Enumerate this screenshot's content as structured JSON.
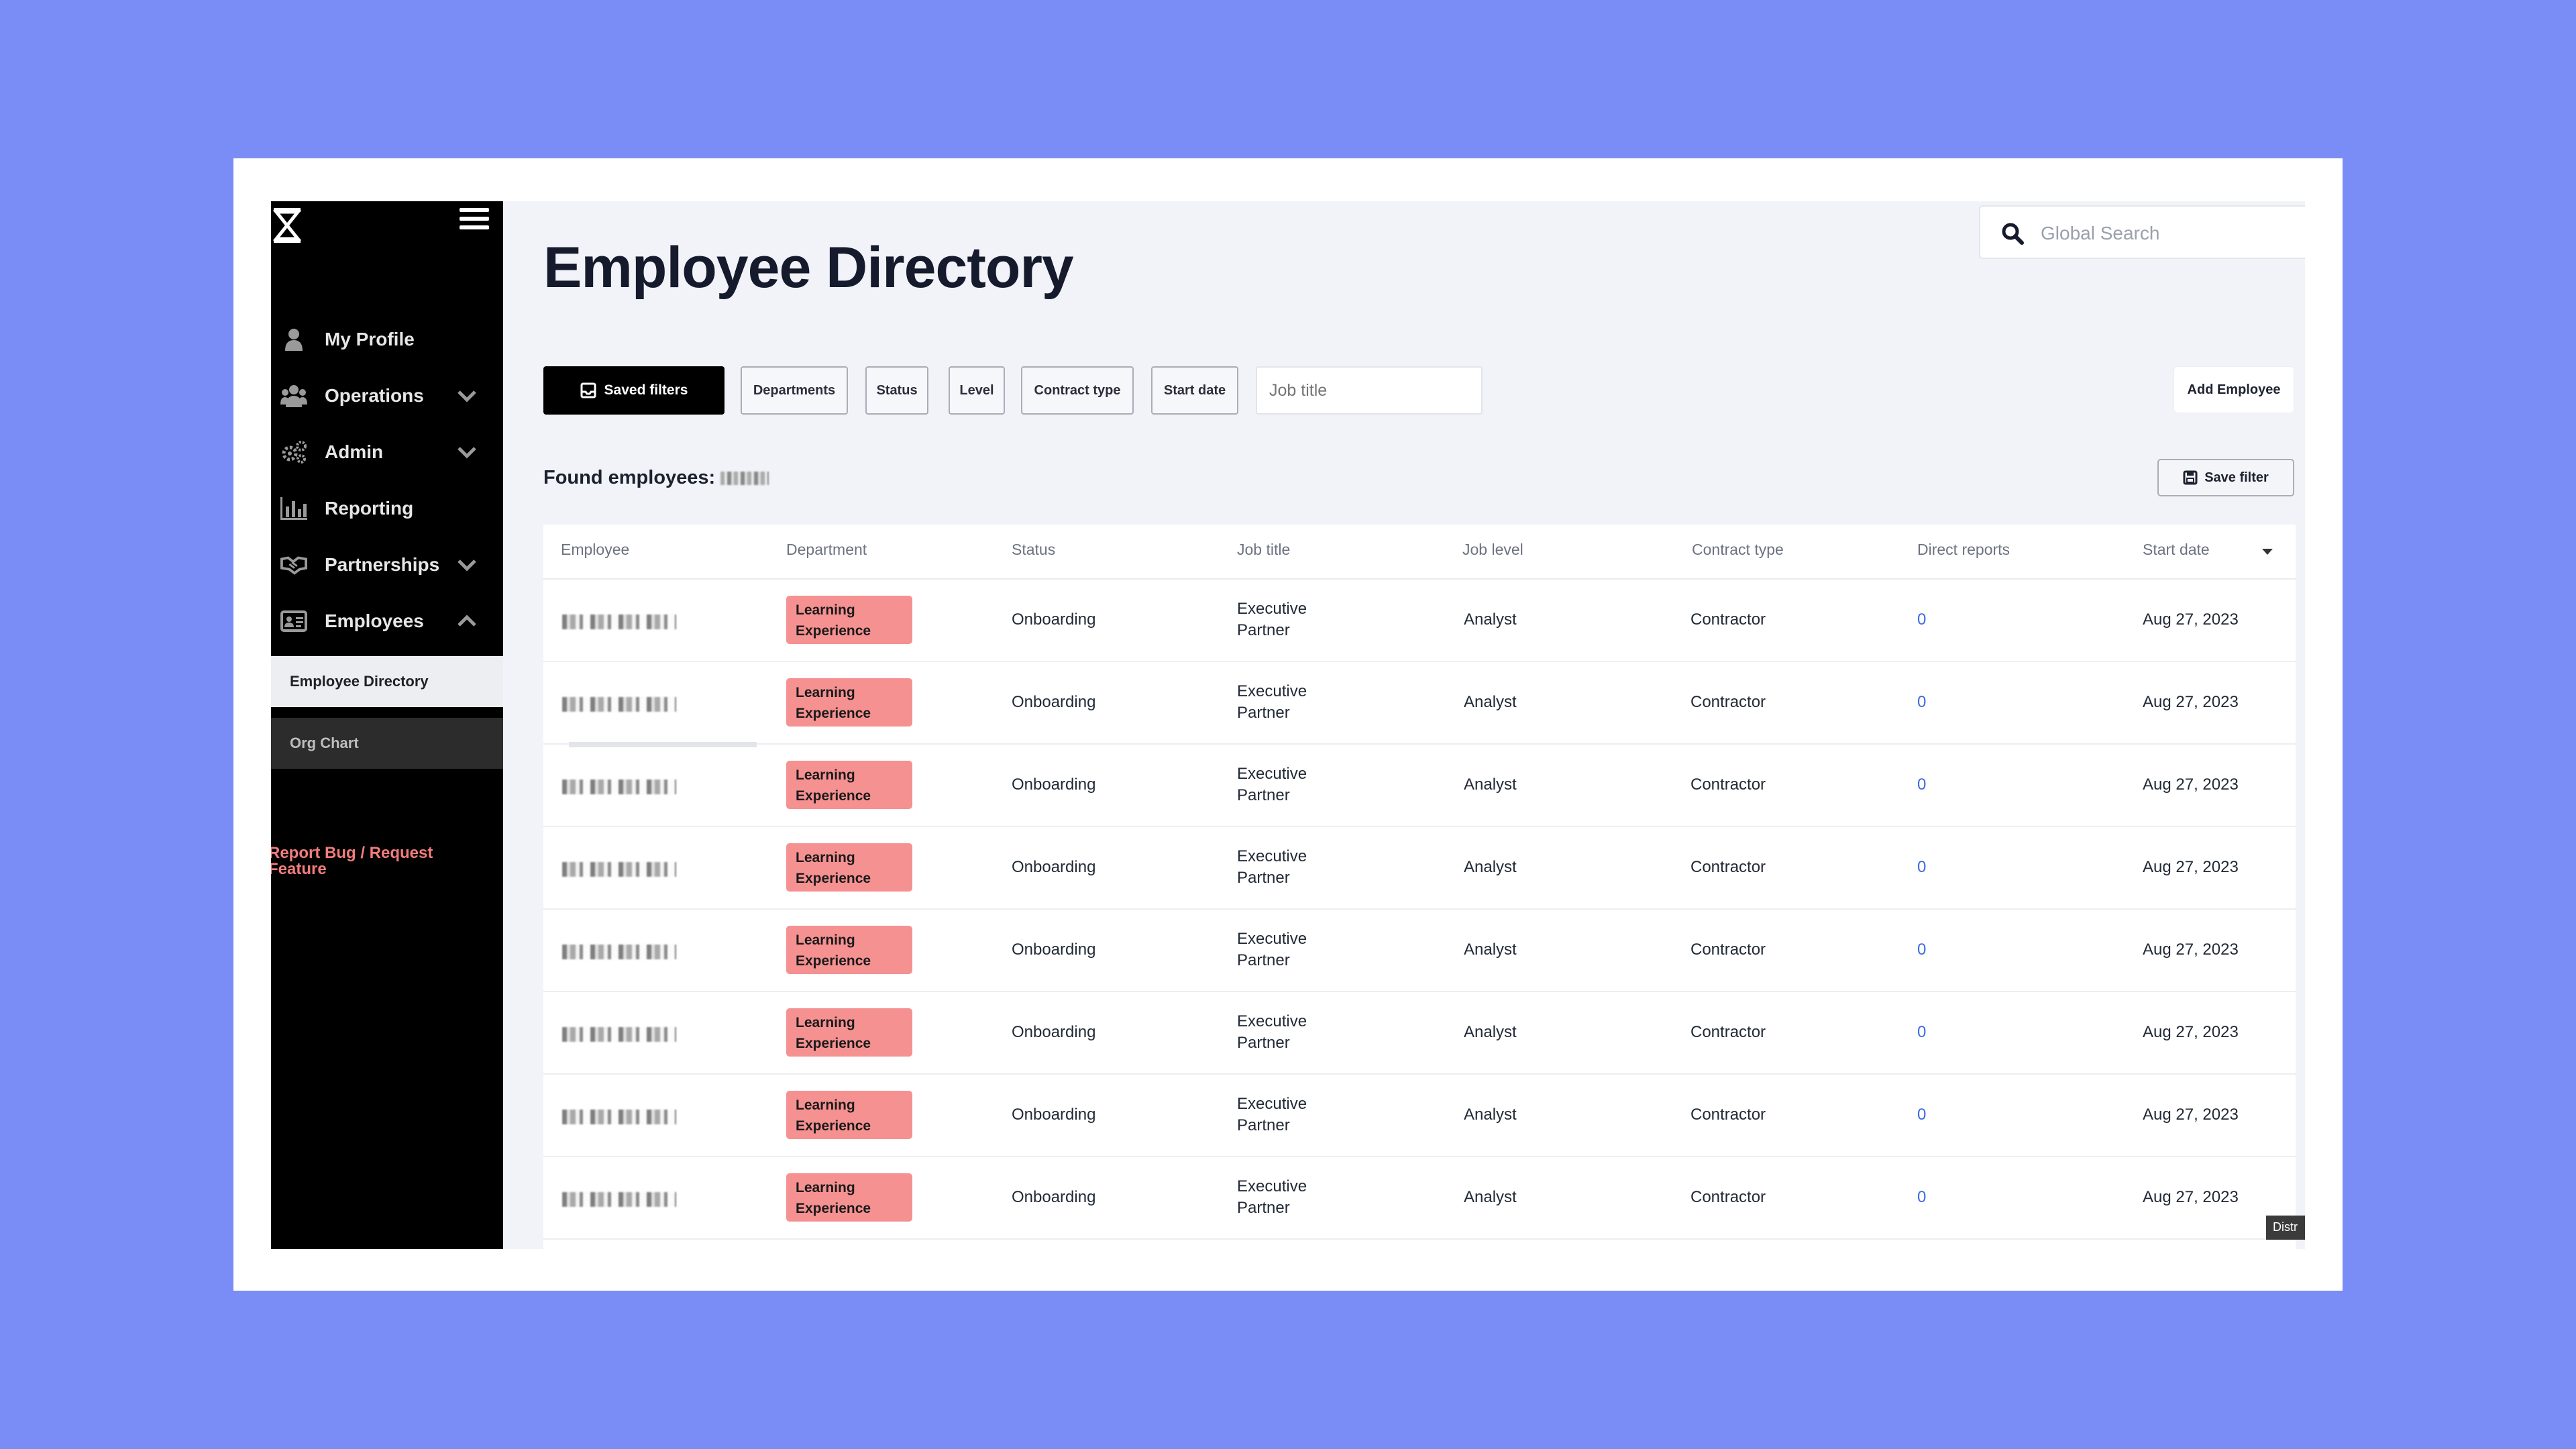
{
  "colors": {
    "background": "#7a8cf6",
    "sidebar": "#000000",
    "department_badge": "#f69191",
    "link": "#3d6ae0",
    "report_bug": "#f27c7c"
  },
  "sidebar": {
    "logo_icon": "hourglass-icon",
    "menu_icon": "hamburger-icon",
    "items": [
      {
        "label": "My Profile",
        "icon": "user-icon",
        "chevron": ""
      },
      {
        "label": "Operations",
        "icon": "users-icon",
        "chevron": "chevron-down-icon"
      },
      {
        "label": "Admin",
        "icon": "gears-icon",
        "chevron": "chevron-down-icon"
      },
      {
        "label": "Reporting",
        "icon": "bar-chart-icon",
        "chevron": ""
      },
      {
        "label": "Partnerships",
        "icon": "handshake-icon",
        "chevron": "chevron-down-icon"
      },
      {
        "label": "Employees",
        "icon": "id-card-icon",
        "chevron": "chevron-up-icon"
      }
    ],
    "sub_items": [
      "Employee Directory",
      "Org Chart"
    ],
    "report_bug": "Report Bug / Request Feature"
  },
  "header": {
    "title": "Employee Directory",
    "search_placeholder": "Global Search"
  },
  "filters": {
    "saved_filters": "Saved filters",
    "chips": [
      "Departments",
      "Status",
      "Level",
      "Contract type",
      "Start date"
    ],
    "job_title_placeholder": "Job title",
    "add_employee": "Add Employee",
    "found_label": "Found employees:",
    "save_filter": "Save filter"
  },
  "table": {
    "columns": [
      "Employee",
      "Department",
      "Status",
      "Job title",
      "Job level",
      "Contract type",
      "Direct reports",
      "Start date"
    ],
    "rows": [
      {
        "department": "Learning Experience",
        "status": "Onboarding",
        "job_title_1": "Executive",
        "job_title_2": "Partner",
        "job_level": "Analyst",
        "contract": "Contractor",
        "direct_reports": "0",
        "start_date": "Aug 27, 2023"
      },
      {
        "department": "Learning Experience",
        "status": "Onboarding",
        "job_title_1": "Executive",
        "job_title_2": "Partner",
        "job_level": "Analyst",
        "contract": "Contractor",
        "direct_reports": "0",
        "start_date": "Aug 27, 2023"
      },
      {
        "department": "Learning Experience",
        "status": "Onboarding",
        "job_title_1": "Executive",
        "job_title_2": "Partner",
        "job_level": "Analyst",
        "contract": "Contractor",
        "direct_reports": "0",
        "start_date": "Aug 27, 2023"
      },
      {
        "department": "Learning Experience",
        "status": "Onboarding",
        "job_title_1": "Executive",
        "job_title_2": "Partner",
        "job_level": "Analyst",
        "contract": "Contractor",
        "direct_reports": "0",
        "start_date": "Aug 27, 2023"
      },
      {
        "department": "Learning Experience",
        "status": "Onboarding",
        "job_title_1": "Executive",
        "job_title_2": "Partner",
        "job_level": "Analyst",
        "contract": "Contractor",
        "direct_reports": "0",
        "start_date": "Aug 27, 2023"
      },
      {
        "department": "Learning Experience",
        "status": "Onboarding",
        "job_title_1": "Executive",
        "job_title_2": "Partner",
        "job_level": "Analyst",
        "contract": "Contractor",
        "direct_reports": "0",
        "start_date": "Aug 27, 2023"
      },
      {
        "department": "Learning Experience",
        "status": "Onboarding",
        "job_title_1": "Executive",
        "job_title_2": "Partner",
        "job_level": "Analyst",
        "contract": "Contractor",
        "direct_reports": "0",
        "start_date": "Aug 27, 2023"
      },
      {
        "department": "Learning Experience",
        "status": "Onboarding",
        "job_title_1": "Executive",
        "job_title_2": "Partner",
        "job_level": "Analyst",
        "contract": "Contractor",
        "direct_reports": "0",
        "start_date": "Aug 27, 2023"
      }
    ]
  },
  "tooltip": "Distr"
}
